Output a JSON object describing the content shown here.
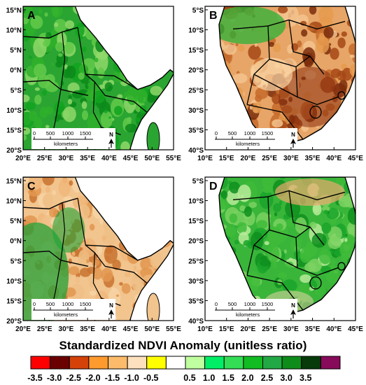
{
  "figure": {
    "colorbar": {
      "title": "Standardized NDVI Anomaly (unitless ratio)",
      "bins": [
        {
          "color": "#ff0000"
        },
        {
          "color": "#6b0000"
        },
        {
          "color": "#d4420a"
        },
        {
          "color": "#ff9a2e"
        },
        {
          "color": "#fcbb6b"
        },
        {
          "color": "#fde0bd"
        },
        {
          "color": "#ffff00"
        },
        {
          "color": "#ffffff"
        },
        {
          "color": "#bfff9f"
        },
        {
          "color": "#00ee66"
        },
        {
          "color": "#33dd55"
        },
        {
          "color": "#11bb22"
        },
        {
          "color": "#22a844"
        },
        {
          "color": "#0e8c1a"
        },
        {
          "color": "#073b0a"
        },
        {
          "color": "#880a5a"
        }
      ],
      "ticks": [
        "-3.5",
        "-3.0",
        "-2.5",
        "-2.0",
        "-1.5",
        "-1.0",
        "-0.5",
        "0.5",
        "1.0",
        "1.5",
        "2.0",
        "2.5",
        "3.0",
        "3.5"
      ]
    },
    "panels": [
      {
        "letter": "A",
        "region": "east",
        "lat_labels": [
          "15°N",
          "10°N",
          "5°N",
          "0°N",
          "5°S",
          "10°S",
          "15°S",
          "20°S"
        ],
        "lon_labels": [
          "20°E",
          "25°E",
          "30°E",
          "35°E",
          "40°E",
          "45°E",
          "50°E",
          "55°E"
        ],
        "scale_ticks": [
          "0",
          "500",
          "1000",
          "1500"
        ],
        "scale_unit": "kilometers",
        "north_label": "N",
        "anomaly": "wet"
      },
      {
        "letter": "B",
        "region": "south",
        "lat_labels": [
          "5°S",
          "10°S",
          "15°S",
          "20°S",
          "25°S",
          "30°S",
          "35°S",
          "40°S"
        ],
        "lon_labels": [
          "10°E",
          "15°E",
          "20°E",
          "25°E",
          "30°E",
          "35°E",
          "40°E",
          "45°E"
        ],
        "scale_ticks": [
          "0",
          "500",
          "1000",
          "1500"
        ],
        "scale_unit": "kilometers",
        "north_label": "N",
        "anomaly": "dry"
      },
      {
        "letter": "C",
        "region": "east",
        "lat_labels": [
          "15°N",
          "10°N",
          "5°N",
          "0°N",
          "5°S",
          "10°S",
          "15°S",
          "20°S"
        ],
        "lon_labels": [
          "20°E",
          "25°E",
          "30°E",
          "35°E",
          "40°E",
          "45°E",
          "50°E",
          "55°E"
        ],
        "scale_ticks": [
          "0",
          "500",
          "1000",
          "1500"
        ],
        "scale_unit": "kilometers",
        "north_label": "N",
        "anomaly": "dry"
      },
      {
        "letter": "D",
        "region": "south",
        "lat_labels": [
          "5°S",
          "10°S",
          "15°S",
          "20°S",
          "25°S",
          "30°S",
          "35°S",
          "40°S"
        ],
        "lon_labels": [
          "10°E",
          "15°E",
          "20°E",
          "25°E",
          "30°E",
          "35°E",
          "40°E",
          "45°E"
        ],
        "scale_ticks": [
          "0",
          "500",
          "1000",
          "1500"
        ],
        "scale_unit": "kilometers",
        "north_label": "N",
        "anomaly": "wet"
      }
    ]
  }
}
